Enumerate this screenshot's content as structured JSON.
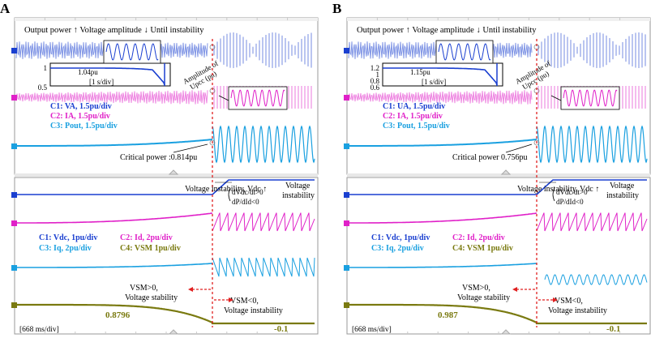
{
  "colors": {
    "c1": "#1a3fd0",
    "c2": "#e020c8",
    "c3": "#1aa0e0",
    "c4": "#7a7a10",
    "marker": "#e02020",
    "grid": "#c8c8c8"
  },
  "panels": [
    {
      "letter": "A",
      "header": "Output power ↑ Voltage amplitude ↓ Until instability",
      "inset_ticks": [
        "1",
        "0.5"
      ],
      "inset_label": "1.04pu",
      "inset_scale": "[1 s/div]",
      "amplitude_label_1": "Amplitude of",
      "amplitude_label_2": "Upcc (pu)",
      "legend_top": [
        "C1: VA, 1.5pu/div",
        "C2: IA, 1.5pu/div",
        "C3: Pout, 1.5pu/div"
      ],
      "critical_power": "Critical power :0.814pu",
      "instability": "Voltage instability, Vdc ↑",
      "cond1": "dVdc/dt>0",
      "cond2": "dP/dId<0",
      "voltage_instability_1": "Voltage",
      "voltage_instability_2": "instability",
      "legend_bottom": [
        "C1: Vdc, 1pu/div",
        "C2: Id, 2pu/div",
        "C3: Iq, 2pu/div",
        "C4: VSM 1pu/div"
      ],
      "vsm_pos": "VSM>0,",
      "vsm_stab": "Voltage stability",
      "vsm_neg": "VSM<0,",
      "vsm_instab": "Voltage instability",
      "vsm_value_before": "0.8796",
      "vsm_value_after": "-0.1",
      "time_scale": "[668 ms/div]",
      "channel_tags": [
        "C1",
        "C2",
        "C3",
        "C4"
      ]
    },
    {
      "letter": "B",
      "header": "Output power ↑ Voltage amplitude ↓ Until instability",
      "inset_ticks": [
        "1.2",
        "1",
        "0.8",
        "0.6"
      ],
      "inset_label": "1.15pu",
      "inset_scale": "[1 s/div]",
      "amplitude_label_1": "Amplitude of",
      "amplitude_label_2": "Upcc (pu)",
      "legend_top": [
        "C1: UA, 1.5pu/div",
        "C2: IA, 1.5pu/div",
        "C3: Pout, 1.5pu/div"
      ],
      "critical_power": "Critical power 0.756pu",
      "instability": "Voltage instability, Vdc ↑",
      "cond1": "dVdc/dt>0",
      "cond2": "dP/dId<0",
      "voltage_instability_1": "Voltage",
      "voltage_instability_2": "instability",
      "legend_bottom": [
        "C1: Vdc, 1pu/div",
        "C2: Id, 2pu/div",
        "C3: Iq, 2pu/div",
        "C4: VSM 1pu/div"
      ],
      "vsm_pos": "VSM>0,",
      "vsm_stab": "Voltage stability",
      "vsm_neg": "VSM<0,",
      "vsm_instab": "Voltage instability",
      "vsm_value_before": "0.987",
      "vsm_value_after": "-0.1",
      "time_scale": "[668 ms/div]",
      "channel_tags": [
        "C1",
        "C2",
        "C3",
        "C4"
      ]
    }
  ]
}
